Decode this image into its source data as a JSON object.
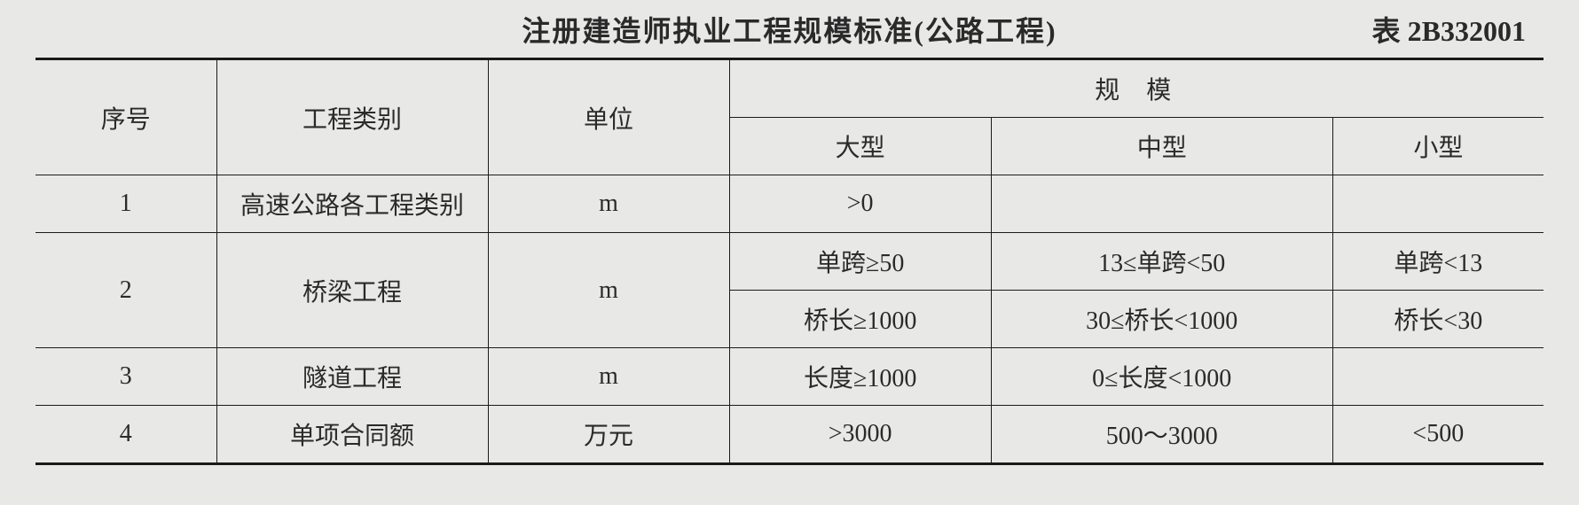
{
  "title": "注册建造师执业工程规模标准(公路工程)",
  "table_label": "表 2B332001",
  "headers": {
    "seq": "序号",
    "type": "工程类别",
    "unit": "单位",
    "scale": "规模",
    "large": "大型",
    "medium": "中型",
    "small": "小型"
  },
  "rows": [
    {
      "seq": "1",
      "type": "高速公路各工程类别",
      "unit": "m",
      "large": ">0",
      "medium": "",
      "small": "",
      "subrows": 1
    },
    {
      "seq": "2",
      "type": "桥梁工程",
      "unit": "m",
      "large": "单跨≥50",
      "medium": "13≤单跨<50",
      "small": "单跨<13",
      "large2": "桥长≥1000",
      "medium2": "30≤桥长<1000",
      "small2": "桥长<30",
      "subrows": 2
    },
    {
      "seq": "3",
      "type": "隧道工程",
      "unit": "m",
      "large": "长度≥1000",
      "medium": "0≤长度<1000",
      "small": "",
      "subrows": 1
    },
    {
      "seq": "4",
      "type": "单项合同额",
      "unit": "万元",
      "large": ">3000",
      "medium": "500～3000",
      "small": "<500",
      "subrows": 1
    }
  ],
  "styling": {
    "background_color": "#e8e9e7",
    "text_color": "#2a2a2a",
    "border_color": "#1a1a1a",
    "font_family": "SimSun",
    "title_fontsize": 32,
    "cell_fontsize": 28,
    "outer_border_width": 3,
    "inner_border_width": 1
  }
}
